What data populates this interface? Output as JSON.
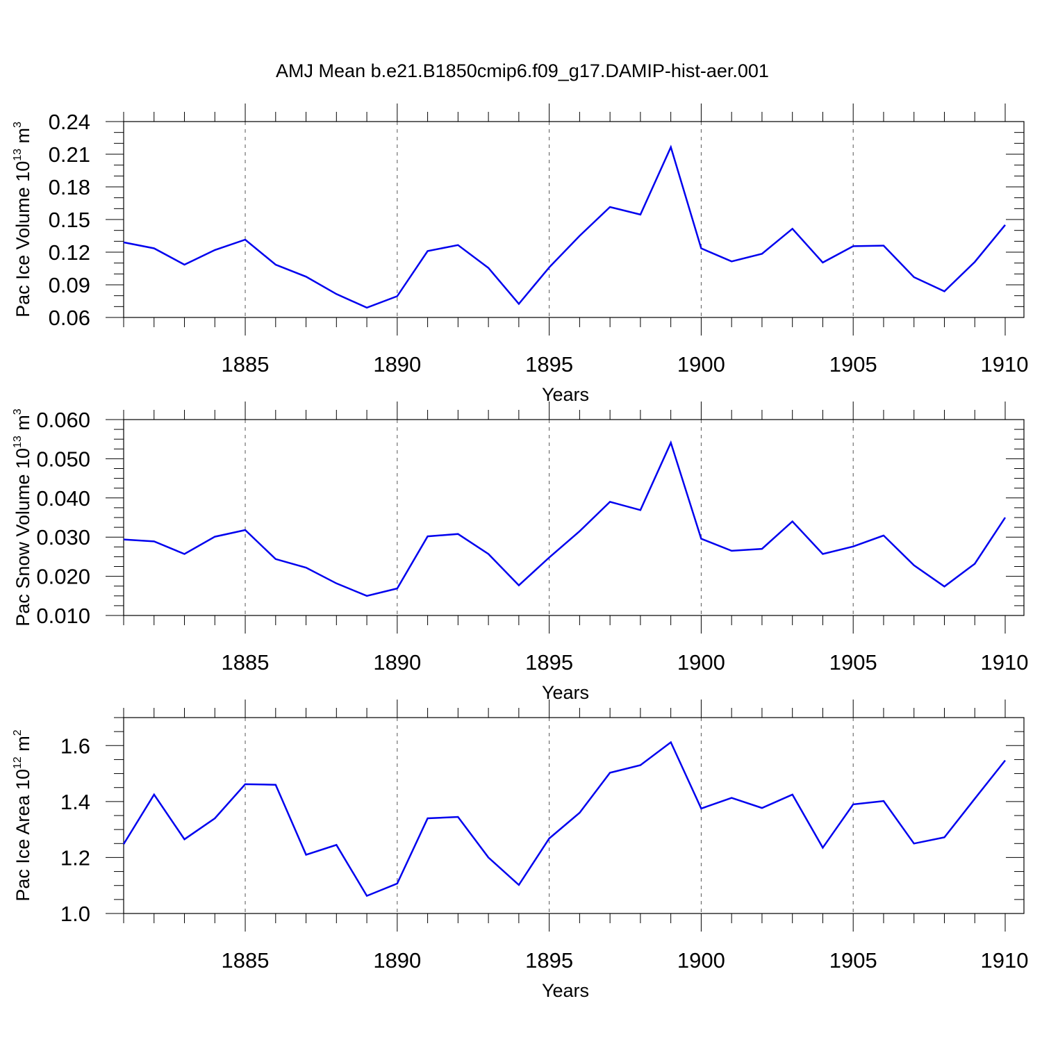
{
  "page": {
    "title": "AMJ Mean b.e21.B1850cmip6.f09_g17.DAMIP-hist-aer.001"
  },
  "colors": {
    "line": "#0000ee",
    "axis": "#000000",
    "grid": "#555555"
  },
  "chart_data": [
    {
      "type": "line",
      "xlabel": "Years",
      "ylabel": {
        "prefix": "Pac Ice Volume 10",
        "exponent": "13",
        "unit": " m",
        "unit_exponent": "3"
      },
      "xlim": [
        1881,
        1910
      ],
      "ylim": [
        0.06,
        0.24
      ],
      "x_ticks": [
        1885,
        1890,
        1895,
        1900,
        1905,
        1910
      ],
      "x_tick_labels": [
        "1885",
        "1890",
        "1895",
        "1900",
        "1905",
        "1910"
      ],
      "y_ticks": [
        0.06,
        0.09,
        0.12,
        0.15,
        0.18,
        0.21,
        0.24
      ],
      "y_tick_labels": [
        "0.06",
        "0.09",
        "0.12",
        "0.15",
        "0.18",
        "0.21",
        "0.24"
      ],
      "y_minor_step": 0.01,
      "grid": "vertical-dashed",
      "x": [
        1881,
        1882,
        1883,
        1884,
        1885,
        1886,
        1887,
        1888,
        1889,
        1890,
        1891,
        1892,
        1893,
        1894,
        1895,
        1896,
        1897,
        1898,
        1899,
        1900,
        1901,
        1902,
        1903,
        1904,
        1905,
        1906,
        1907,
        1908,
        1909,
        1910
      ],
      "series": [
        {
          "name": "Pac Ice Volume",
          "values": [
            0.129,
            0.1235,
            0.1085,
            0.122,
            0.1315,
            0.1085,
            0.0975,
            0.0815,
            0.069,
            0.0795,
            0.121,
            0.1265,
            0.1055,
            0.0725,
            0.106,
            0.135,
            0.1615,
            0.1545,
            0.2165,
            0.1235,
            0.1115,
            0.1185,
            0.1415,
            0.1105,
            0.1255,
            0.126,
            0.097,
            0.084,
            0.111,
            0.145
          ]
        }
      ]
    },
    {
      "type": "line",
      "xlabel": "Years",
      "ylabel": {
        "prefix": "Pac Snow Volume 10",
        "exponent": "13",
        "unit": " m",
        "unit_exponent": "3"
      },
      "xlim": [
        1881,
        1910
      ],
      "ylim": [
        0.01,
        0.06
      ],
      "x_ticks": [
        1885,
        1890,
        1895,
        1900,
        1905,
        1910
      ],
      "x_tick_labels": [
        "1885",
        "1890",
        "1895",
        "1900",
        "1905",
        "1910"
      ],
      "y_ticks": [
        0.01,
        0.02,
        0.03,
        0.04,
        0.05,
        0.06
      ],
      "y_tick_labels": [
        "0.010",
        "0.020",
        "0.030",
        "0.040",
        "0.050",
        "0.060"
      ],
      "y_minor_step": 0.0025,
      "grid": "vertical-dashed",
      "x": [
        1881,
        1882,
        1883,
        1884,
        1885,
        1886,
        1887,
        1888,
        1889,
        1890,
        1891,
        1892,
        1893,
        1894,
        1895,
        1896,
        1897,
        1898,
        1899,
        1900,
        1901,
        1902,
        1903,
        1904,
        1905,
        1906,
        1907,
        1908,
        1909,
        1910
      ],
      "series": [
        {
          "name": "Pac Snow Volume",
          "values": [
            0.0294,
            0.0289,
            0.0257,
            0.0301,
            0.0318,
            0.0244,
            0.0222,
            0.0182,
            0.015,
            0.0169,
            0.0302,
            0.0308,
            0.0257,
            0.0177,
            0.0248,
            0.0315,
            0.039,
            0.0369,
            0.0541,
            0.0296,
            0.0265,
            0.027,
            0.034,
            0.0257,
            0.0276,
            0.0304,
            0.0228,
            0.0174,
            0.0232,
            0.035
          ]
        }
      ]
    },
    {
      "type": "line",
      "xlabel": "Years",
      "ylabel": {
        "prefix": "Pac Ice Area 10",
        "exponent": "12",
        "unit": " m",
        "unit_exponent": "2"
      },
      "xlim": [
        1881,
        1910
      ],
      "ylim": [
        1.0,
        1.7
      ],
      "x_ticks": [
        1885,
        1890,
        1895,
        1900,
        1905,
        1910
      ],
      "x_tick_labels": [
        "1885",
        "1890",
        "1895",
        "1900",
        "1905",
        "1910"
      ],
      "y_ticks": [
        1.0,
        1.2,
        1.4,
        1.6
      ],
      "y_tick_labels": [
        "1.0",
        "1.2",
        "1.4",
        "1.6"
      ],
      "y_minor_step": 0.05,
      "grid": "vertical-dashed",
      "x": [
        1881,
        1882,
        1883,
        1884,
        1885,
        1886,
        1887,
        1888,
        1889,
        1890,
        1891,
        1892,
        1893,
        1894,
        1895,
        1896,
        1897,
        1898,
        1899,
        1900,
        1901,
        1902,
        1903,
        1904,
        1905,
        1906,
        1907,
        1908,
        1909,
        1910
      ],
      "series": [
        {
          "name": "Pac Ice Area",
          "values": [
            1.248,
            1.425,
            1.265,
            1.34,
            1.462,
            1.46,
            1.21,
            1.245,
            1.063,
            1.107,
            1.34,
            1.345,
            1.2,
            1.102,
            1.268,
            1.36,
            1.503,
            1.53,
            1.612,
            1.375,
            1.413,
            1.377,
            1.425,
            1.235,
            1.39,
            1.402,
            1.25,
            1.272,
            1.41,
            1.547
          ]
        }
      ]
    }
  ]
}
